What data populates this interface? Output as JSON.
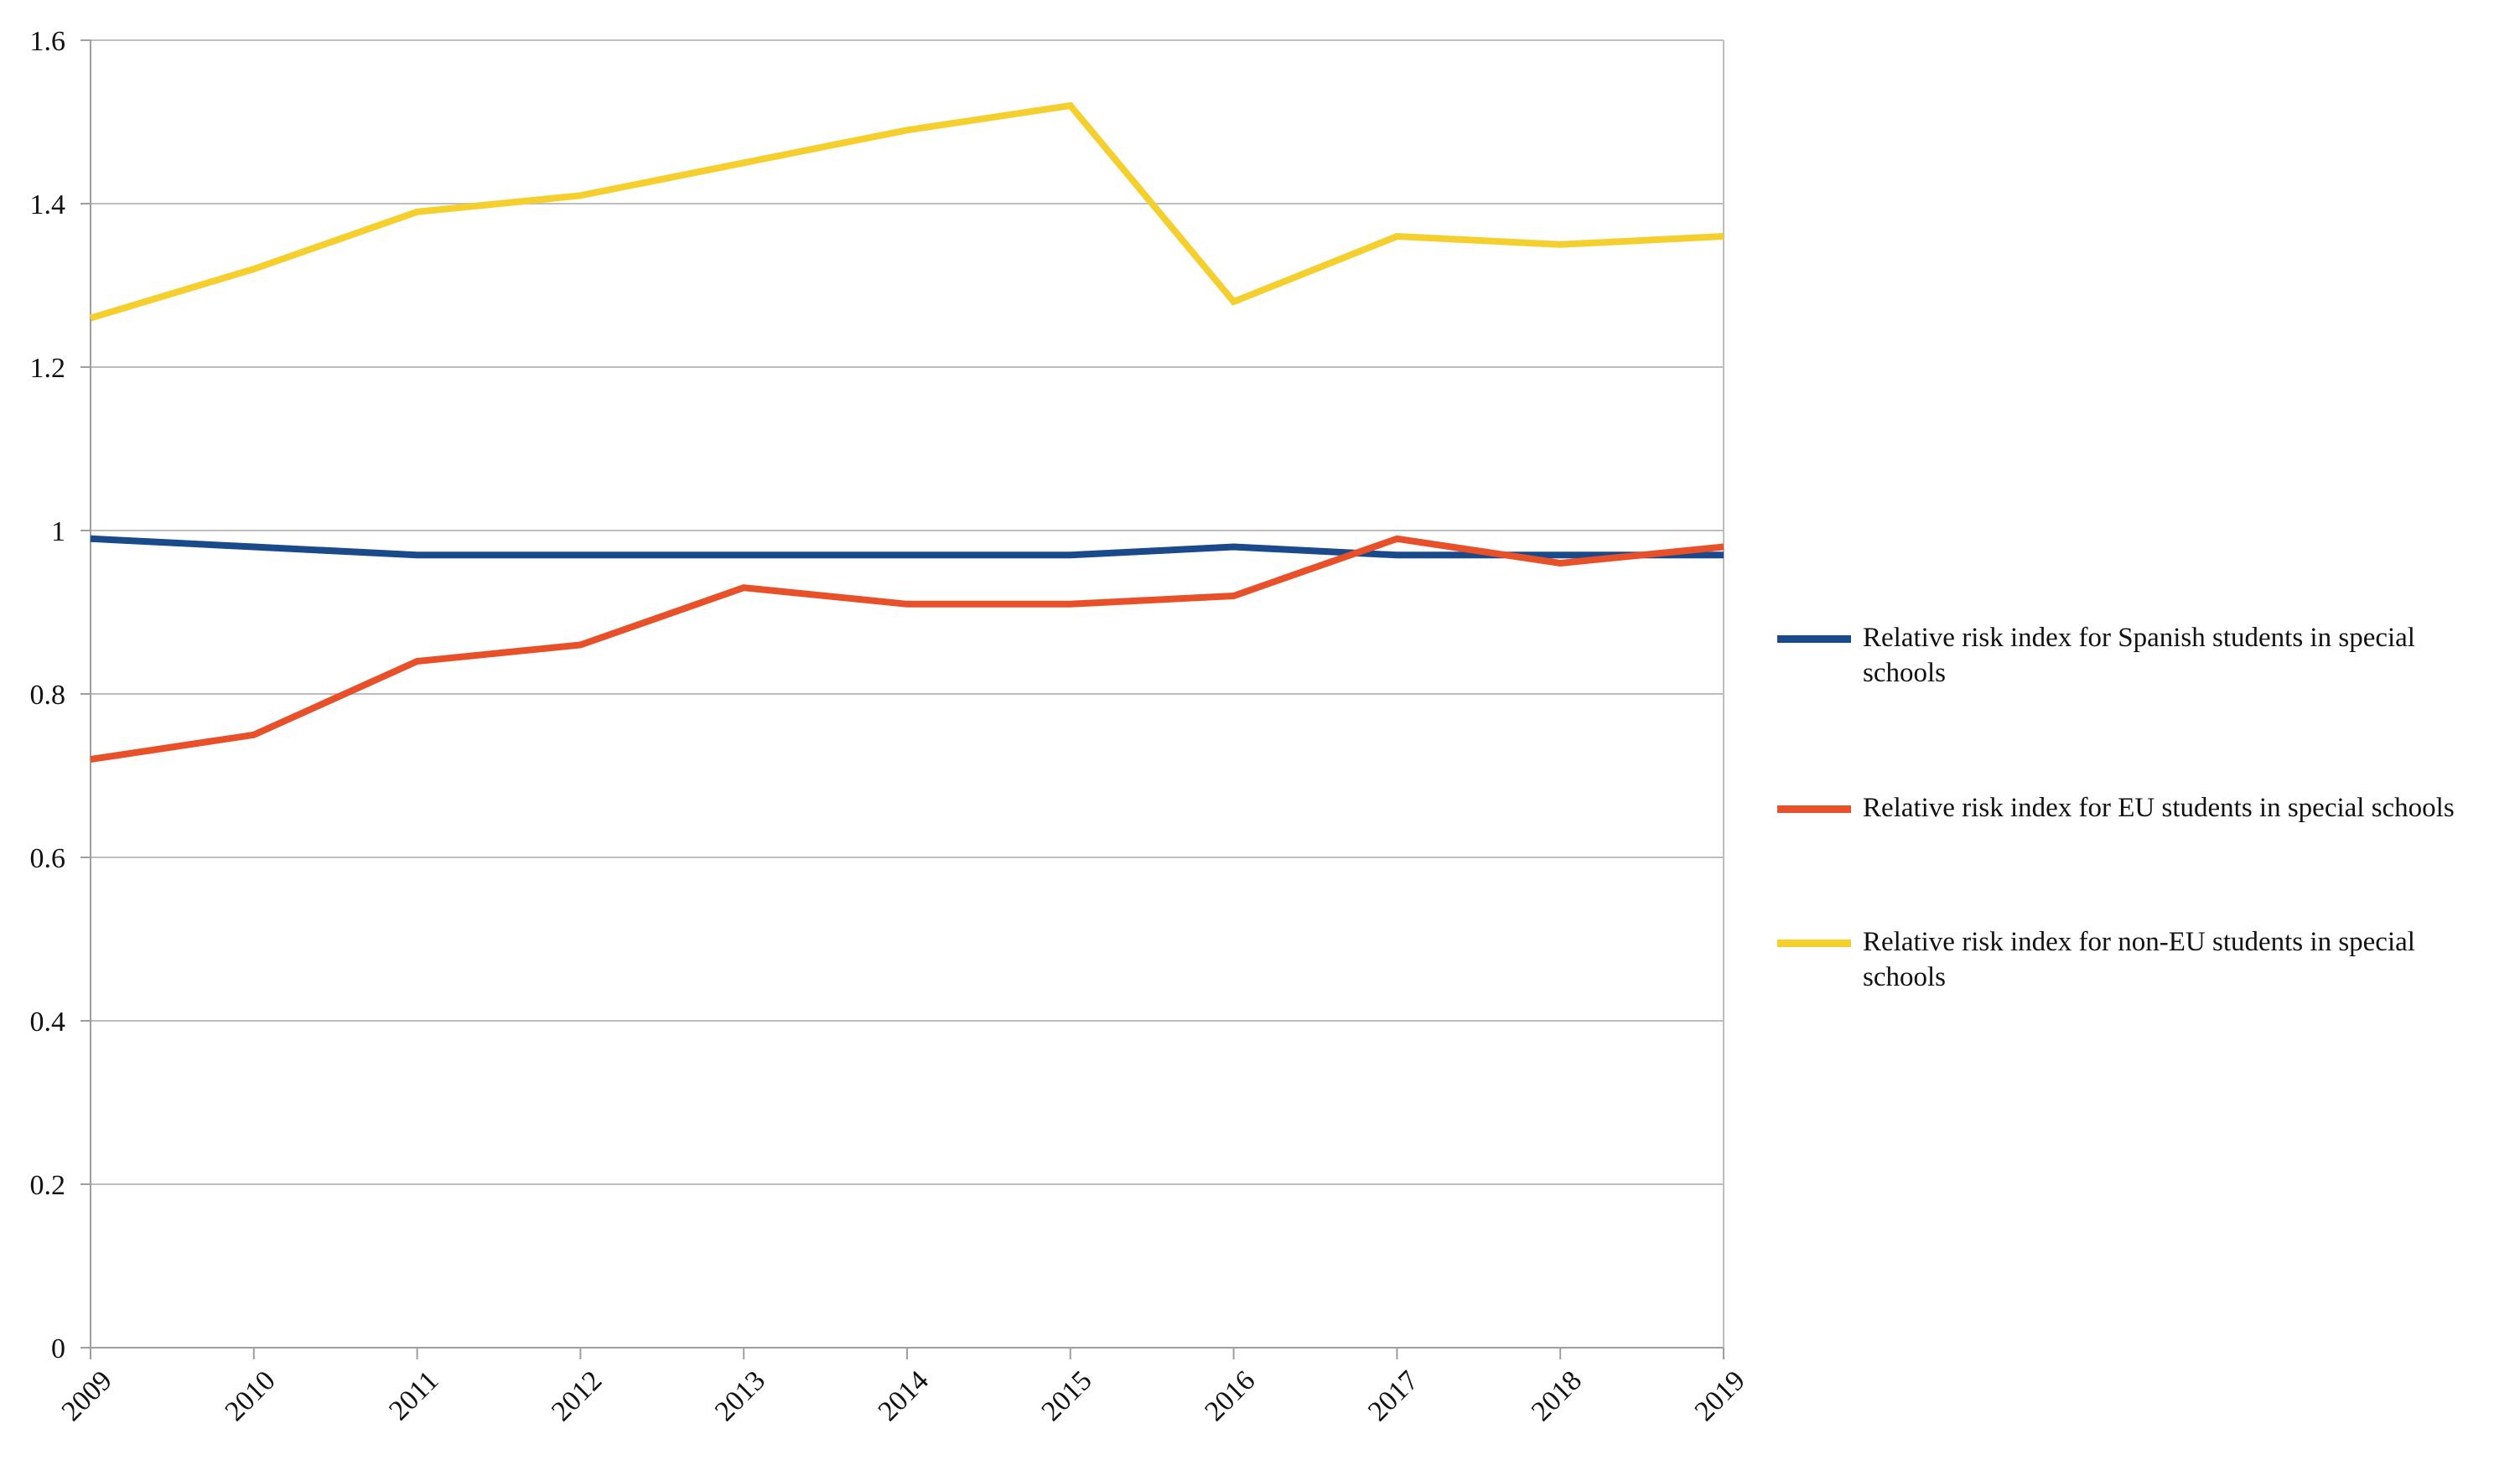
{
  "chart_data": {
    "type": "line",
    "title": "",
    "xlabel": "",
    "ylabel": "",
    "categories": [
      "2009",
      "2010",
      "2011",
      "2012",
      "2013",
      "2014",
      "2015",
      "2016",
      "2017",
      "2018",
      "2019"
    ],
    "ylim": [
      0,
      1.6
    ],
    "y_ticks": [
      "0",
      "0.2",
      "0.4",
      "0.6",
      "0.8",
      "1",
      "1.2",
      "1.4",
      "1.6"
    ],
    "y_tick_values": [
      0,
      0.2,
      0.4,
      0.6,
      0.8,
      1.0,
      1.2,
      1.4,
      1.6
    ],
    "grid": true,
    "legend_position": "right",
    "series": [
      {
        "name": "Relative risk index for Spanish students in special schools",
        "color": "#1a4a8a",
        "values": [
          0.99,
          0.98,
          0.97,
          0.97,
          0.97,
          0.97,
          0.97,
          0.98,
          0.97,
          0.97,
          0.97
        ]
      },
      {
        "name": "Relative risk index for EU students in special schools",
        "color": "#e8502a",
        "values": [
          0.72,
          0.75,
          0.84,
          0.86,
          0.93,
          0.91,
          0.91,
          0.92,
          0.99,
          0.96,
          0.98
        ]
      },
      {
        "name": "Relative risk index for non-EU students in special schools",
        "color": "#f5cf2e",
        "values": [
          1.26,
          1.32,
          1.39,
          1.41,
          1.45,
          1.49,
          1.52,
          1.28,
          1.36,
          1.35,
          1.36
        ]
      }
    ]
  }
}
